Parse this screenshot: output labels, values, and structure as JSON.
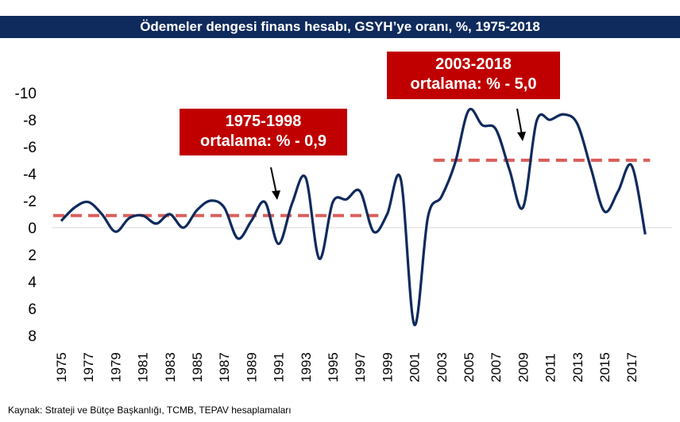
{
  "title": "Ödemeler dengesi finans hesabı, GSYH’ye oranı, %, 1975-2018",
  "source": "Kaynak: Strateji ve Bütçe Başkanlığı,  TCMB, TEPAV hesaplamaları",
  "callouts": [
    {
      "line1": "1975-1998",
      "line2": "ortalama: % - 0,9"
    },
    {
      "line1": "2003-2018",
      "line2": "ortalama: % - 5,0"
    }
  ],
  "colors": {
    "series": "#0f2a5c",
    "average": "#d9605c",
    "callout": "#c00000",
    "title_bg": "#0f2a5c"
  },
  "chart_data": {
    "type": "line",
    "title": "Ödemeler dengesi finans hesabı, GSYH’ye oranı, %, 1975-2018",
    "xlabel": "",
    "ylabel": "",
    "ylim": [
      8,
      -10
    ],
    "y_axis_inverted": true,
    "y_ticks": [
      "-10",
      "-8",
      "-6",
      "-4",
      "-2",
      "0",
      "2",
      "4",
      "6",
      "8"
    ],
    "x_tick_labels": [
      "1975",
      "1977",
      "1979",
      "1981",
      "1983",
      "1985",
      "1987",
      "1989",
      "1991",
      "1993",
      "1995",
      "1997",
      "1999",
      "2001",
      "2003",
      "2005",
      "2007",
      "2009",
      "2011",
      "2013",
      "2015",
      "2017"
    ],
    "grid": false,
    "series": [
      {
        "x": [
          1975,
          1976,
          1977,
          1978,
          1979,
          1980,
          1981,
          1982,
          1983,
          1984,
          1985,
          1986,
          1987,
          1988,
          1989,
          1990,
          1991,
          1992,
          1993,
          1994,
          1995,
          1996,
          1997,
          1998,
          1999,
          2000,
          2001,
          2002,
          2003,
          2004,
          2005,
          2006,
          2007,
          2008,
          2009,
          2010,
          2011,
          2012,
          2013,
          2014,
          2015,
          2016,
          2017,
          2018
        ],
        "values": [
          -0.5,
          -1.5,
          -1.9,
          -1.0,
          0.3,
          -0.7,
          -0.9,
          -0.3,
          -1.0,
          0.0,
          -1.3,
          -2.0,
          -1.5,
          0.8,
          -0.5,
          -1.9,
          1.2,
          -1.8,
          -3.7,
          2.3,
          -1.9,
          -2.1,
          -2.7,
          0.3,
          -1.0,
          -3.6,
          7.2,
          -0.8,
          -2.3,
          -4.8,
          -8.7,
          -7.6,
          -7.3,
          -4.3,
          -1.5,
          -7.9,
          -8.0,
          -8.4,
          -7.7,
          -4.4,
          -1.2,
          -2.7,
          -4.6,
          0.5
        ]
      }
    ],
    "averages": [
      {
        "label": "1975-1998",
        "from": 1975,
        "to": 1998,
        "value": -0.9
      },
      {
        "label": "2003-2018",
        "from": 2003,
        "to": 2018,
        "value": -5.0
      }
    ]
  }
}
